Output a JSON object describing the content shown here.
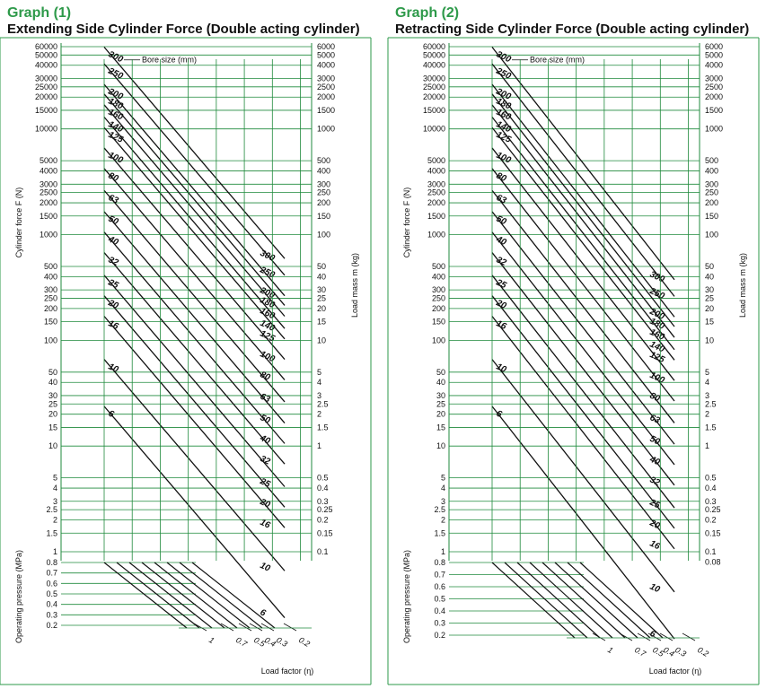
{
  "colors": {
    "grid": "#1f8a3c",
    "line": "#111111",
    "title": "#2e9a4a",
    "frame": "#2e9a4a"
  },
  "chart_data": [
    {
      "type": "nomogram",
      "title": "Graph (1)",
      "subtitle": "Extending Side Cylinder Force (Double acting cylinder)",
      "ylabel": "Cylinder force F (N)",
      "y2label": "Load mass m (kg)",
      "pressure_label": "Operating pressure (MPa)",
      "load_factor_label": "Load factor (η)",
      "bore_label": "Bore size (mm)",
      "force_ticks": [
        "60000",
        "50000",
        "40000",
        "30000",
        "25000",
        "20000",
        "15000",
        "10000",
        "5000",
        "4000",
        "3000",
        "2500",
        "2000",
        "1500",
        "1000",
        "500",
        "400",
        "300",
        "250",
        "200",
        "150",
        "100",
        "50",
        "40",
        "30",
        "25",
        "20",
        "15",
        "10",
        "5",
        "4",
        "3",
        "2.5",
        "2",
        "1.5",
        "1"
      ],
      "mass_ticks": [
        "6000",
        "5000",
        "4000",
        "3000",
        "2500",
        "2000",
        "1500",
        "1000",
        "500",
        "400",
        "300",
        "250",
        "200",
        "150",
        "100",
        "50",
        "40",
        "30",
        "25",
        "20",
        "15",
        "10",
        "5",
        "4",
        "3",
        "2.5",
        "2",
        "1.5",
        "1",
        "0.5",
        "0.4",
        "0.3",
        "0.25",
        "0.2",
        "0.15",
        "0.1"
      ],
      "pressure_ticks": [
        "0.8",
        "0.7",
        "0.6",
        "0.5",
        "0.4",
        "0.3",
        "0.2"
      ],
      "bore_sizes": [
        "300",
        "250",
        "200",
        "180",
        "160",
        "140",
        "125",
        "100",
        "80",
        "63",
        "50",
        "40",
        "32",
        "25",
        "20",
        "16",
        "10",
        "6"
      ],
      "load_factors": [
        "1",
        "0.7",
        "0.5",
        "0.4",
        "0.3",
        "0.2"
      ]
    },
    {
      "type": "nomogram",
      "title": "Graph (2)",
      "subtitle": "Retracting Side Cylinder Force (Double acting cylinder)",
      "ylabel": "Cylinder force F (N)",
      "y2label": "Load mass m (kg)",
      "pressure_label": "Operating pressure (MPa)",
      "load_factor_label": "Load factor (η)",
      "bore_label": "Bore size (mm)",
      "force_ticks": [
        "60000",
        "50000",
        "40000",
        "30000",
        "25000",
        "20000",
        "15000",
        "10000",
        "5000",
        "4000",
        "3000",
        "2500",
        "2000",
        "1500",
        "1000",
        "500",
        "400",
        "300",
        "250",
        "200",
        "150",
        "100",
        "50",
        "40",
        "30",
        "25",
        "20",
        "15",
        "10",
        "5",
        "4",
        "3",
        "2.5",
        "2",
        "1.5",
        "1"
      ],
      "mass_ticks": [
        "6000",
        "5000",
        "4000",
        "3000",
        "2500",
        "2000",
        "1500",
        "1000",
        "500",
        "400",
        "300",
        "250",
        "200",
        "150",
        "100",
        "50",
        "40",
        "30",
        "25",
        "20",
        "15",
        "10",
        "5",
        "4",
        "3",
        "2.5",
        "2",
        "1.5",
        "1",
        "0.5",
        "0.4",
        "0.3",
        "0.25",
        "0.2",
        "0.15",
        "0.1",
        "0.08"
      ],
      "pressure_ticks": [
        "0.8",
        "0.7",
        "0.6",
        "0.5",
        "0.4",
        "0.3",
        "0.2"
      ],
      "bore_sizes": [
        "300",
        "250",
        "200",
        "180",
        "160",
        "140",
        "125",
        "100",
        "80",
        "63",
        "50",
        "40",
        "32",
        "25",
        "20",
        "16",
        "10",
        "6"
      ],
      "load_factors": [
        "1",
        "0.7",
        "0.5",
        "0.4",
        "0.3",
        "0.2"
      ]
    }
  ]
}
